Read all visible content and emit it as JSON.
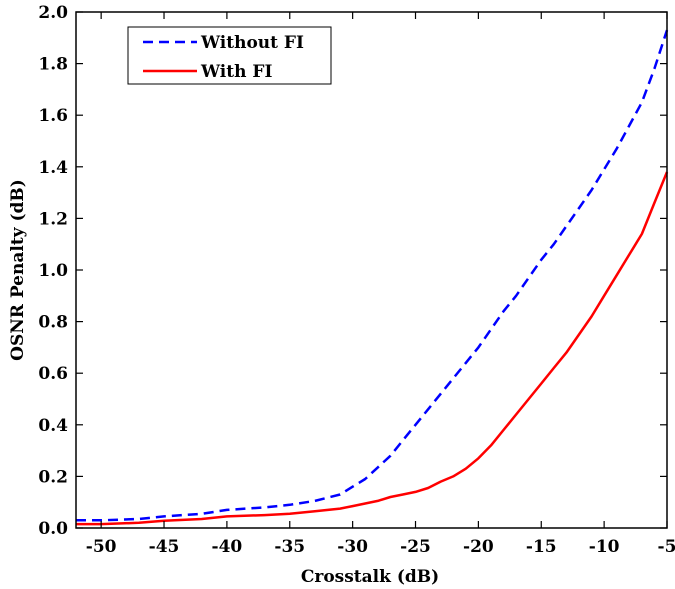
{
  "chart_data": {
    "type": "line",
    "title": "",
    "xlabel": "Crosstalk (dB)",
    "ylabel": "OSNR Penalty (dB)",
    "xlim": [
      -52,
      -5
    ],
    "ylim": [
      0.0,
      2.0
    ],
    "x_ticks": [
      -50,
      -45,
      -40,
      -35,
      -30,
      -25,
      -20,
      -15,
      -10,
      -5
    ],
    "y_ticks": [
      0.0,
      0.2,
      0.4,
      0.6,
      0.8,
      1.0,
      1.2,
      1.4,
      1.6,
      1.8,
      2.0
    ],
    "x_tick_labels": [
      "-50",
      "-45",
      "-40",
      "-35",
      "-30",
      "-25",
      "-20",
      "-15",
      "-10",
      "-5"
    ],
    "y_tick_labels": [
      "0.0",
      "0.2",
      "0.4",
      "0.6",
      "0.8",
      "1.0",
      "1.2",
      "1.4",
      "1.6",
      "1.8",
      "2.0"
    ],
    "grid": false,
    "legend_position": "top-left",
    "series": [
      {
        "name": "Without FI",
        "color": "#0000ff",
        "style": "dashed",
        "x": [
          -52,
          -50,
          -47,
          -45,
          -42,
          -40,
          -37,
          -35,
          -33,
          -31,
          -30,
          -29,
          -28,
          -27,
          -26,
          -25,
          -24,
          -23,
          -22,
          -21,
          -20,
          -19,
          -18,
          -17,
          -16,
          -15,
          -14,
          -13,
          -12,
          -11,
          -10,
          -9,
          -8,
          -7,
          -6,
          -5
        ],
        "values": [
          0.03,
          0.03,
          0.035,
          0.045,
          0.055,
          0.07,
          0.08,
          0.09,
          0.105,
          0.13,
          0.16,
          0.19,
          0.235,
          0.28,
          0.34,
          0.4,
          0.46,
          0.52,
          0.58,
          0.64,
          0.7,
          0.77,
          0.84,
          0.9,
          0.97,
          1.04,
          1.1,
          1.17,
          1.24,
          1.31,
          1.39,
          1.47,
          1.56,
          1.65,
          1.78,
          1.93
        ]
      },
      {
        "name": "With FI",
        "color": "#ff0000",
        "style": "solid",
        "x": [
          -52,
          -50,
          -47,
          -45,
          -42,
          -40,
          -37,
          -35,
          -33,
          -31,
          -30,
          -29,
          -28,
          -27,
          -26,
          -25,
          -24,
          -23,
          -22,
          -21,
          -20,
          -19,
          -18,
          -17,
          -16,
          -15,
          -14,
          -13,
          -12,
          -11,
          -10,
          -9,
          -8,
          -7,
          -6,
          -5
        ],
        "values": [
          0.015,
          0.015,
          0.02,
          0.028,
          0.035,
          0.045,
          0.05,
          0.055,
          0.065,
          0.075,
          0.085,
          0.095,
          0.105,
          0.12,
          0.13,
          0.14,
          0.155,
          0.18,
          0.2,
          0.23,
          0.27,
          0.32,
          0.38,
          0.44,
          0.5,
          0.56,
          0.62,
          0.68,
          0.75,
          0.82,
          0.9,
          0.98,
          1.06,
          1.14,
          1.26,
          1.38
        ]
      }
    ]
  }
}
